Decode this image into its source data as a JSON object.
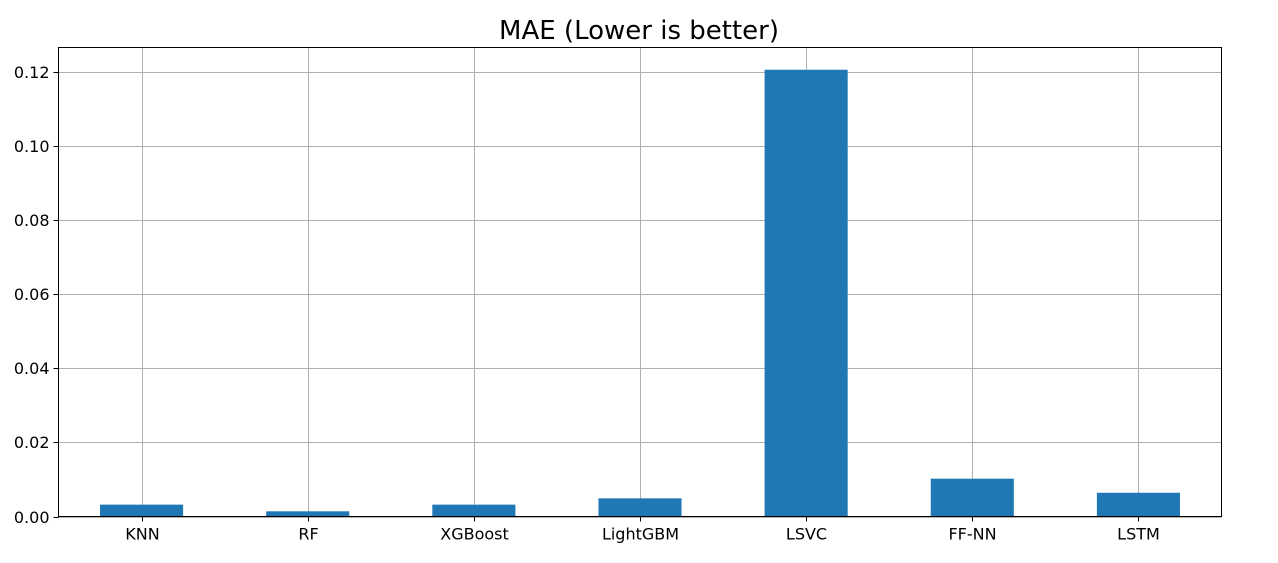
{
  "chart_data": {
    "type": "bar",
    "title": "MAE (Lower is better)",
    "xlabel": "",
    "ylabel": "",
    "categories": [
      "KNN",
      "RF",
      "XGBoost",
      "LightGBM",
      "LSVC",
      "FF-NN",
      "LSTM"
    ],
    "values": [
      0.0032,
      0.0014,
      0.0032,
      0.0049,
      0.1205,
      0.0102,
      0.0064
    ],
    "ylim": [
      0,
      0.1265
    ],
    "yticks": [
      0.0,
      0.02,
      0.04,
      0.06,
      0.08,
      0.1,
      0.12
    ],
    "ytick_labels": [
      "0.00",
      "0.02",
      "0.04",
      "0.06",
      "0.08",
      "0.10",
      "0.12"
    ],
    "grid": true,
    "bar_color": "#1f77b4",
    "grid_color": "#b0b0b0"
  }
}
